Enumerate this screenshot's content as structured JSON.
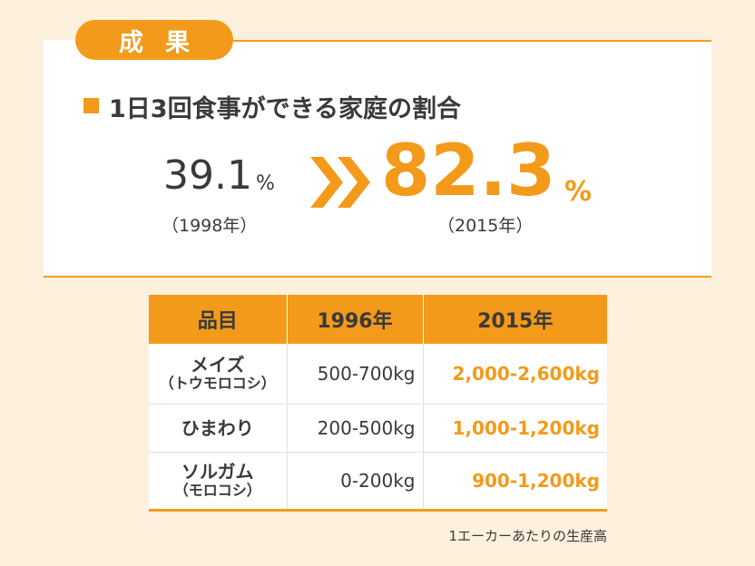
{
  "tab_label": "成果",
  "heading": "1日3回食事ができる家庭の割合",
  "before": {
    "value": "39.1",
    "unit": "%",
    "year": "（1998年）"
  },
  "after": {
    "value": "82.3",
    "unit": "%",
    "year": "（2015年）"
  },
  "arrow_icon": "double-chevron-right-icon",
  "table": {
    "headers": [
      "品目",
      "1996年",
      "2015年"
    ],
    "rows": [
      {
        "item": "メイズ",
        "sub": "（トウモロコシ）",
        "y1996": "500-700kg",
        "y2015": "2,000-2,600kg"
      },
      {
        "item": "ひまわり",
        "sub": "",
        "y1996": "200-500kg",
        "y2015": "1,000-1,200kg"
      },
      {
        "item": "ソルガム",
        "sub": "（モロコシ）",
        "y1996": "0-200kg",
        "y2015": "900-1,200kg"
      }
    ]
  },
  "footnote": "1エーカーあたりの生産高",
  "colors": {
    "accent": "#f39a1a",
    "background": "#fdf0dc",
    "text": "#3a3a3a"
  }
}
